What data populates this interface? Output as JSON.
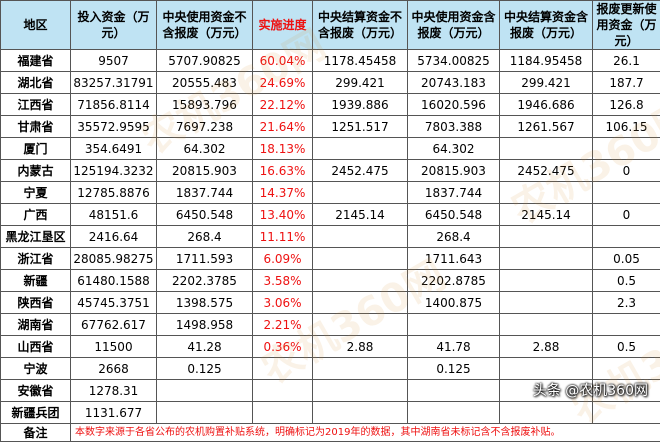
{
  "table": {
    "headers": [
      "地区",
      "投入资金（万元）",
      "中央使用资金不含报废（万元）",
      "实施进度",
      "中央结算资金不含报废（万元）",
      "中央使用资金含报废（万元）",
      "中央结算资金含报废（万元）",
      "报废更新使用资金（万元）"
    ],
    "rows": [
      [
        "福建省",
        "9507",
        "5707.90825",
        "60.04%",
        "1178.45458",
        "5734.00825",
        "1184.95458",
        "26.1"
      ],
      [
        "湖北省",
        "83257.31791",
        "20555.483",
        "24.69%",
        "299.421",
        "20743.183",
        "299.421",
        "187.7"
      ],
      [
        "江西省",
        "71856.8114",
        "15893.796",
        "22.12%",
        "1939.886",
        "16020.596",
        "1946.686",
        "126.8"
      ],
      [
        "甘肃省",
        "35572.9595",
        "7697.238",
        "21.64%",
        "1251.517",
        "7803.388",
        "1261.567",
        "106.15"
      ],
      [
        "厦门",
        "354.6491",
        "64.302",
        "18.13%",
        "",
        "64.302",
        "",
        ""
      ],
      [
        "内蒙古",
        "125194.3232",
        "20815.903",
        "16.63%",
        "2452.475",
        "20815.903",
        "2452.475",
        "0"
      ],
      [
        "宁夏",
        "12785.8876",
        "1837.744",
        "14.37%",
        "",
        "1837.744",
        "",
        ""
      ],
      [
        "广西",
        "48151.6",
        "6450.548",
        "13.40%",
        "2145.14",
        "6450.548",
        "2145.14",
        "0"
      ],
      [
        "黑龙江垦区",
        "2416.64",
        "268.4",
        "11.11%",
        "",
        "268.4",
        "",
        ""
      ],
      [
        "浙江省",
        "28085.98275",
        "1711.593",
        "6.09%",
        "",
        "1711.643",
        "",
        "0.05"
      ],
      [
        "新疆",
        "61480.1588",
        "2202.3785",
        "3.58%",
        "",
        "2202.8785",
        "",
        "0.5"
      ],
      [
        "陕西省",
        "45745.3751",
        "1398.575",
        "3.06%",
        "",
        "1400.875",
        "",
        "2.3"
      ],
      [
        "湖南省",
        "67762.617",
        "1498.958",
        "2.21%",
        "",
        "",
        "",
        ""
      ],
      [
        "山西省",
        "11500",
        "41.28",
        "0.36%",
        "2.88",
        "41.78",
        "2.88",
        "0.5"
      ],
      [
        "宁波",
        "2668",
        "0.125",
        "",
        "",
        "0.125",
        "",
        ""
      ],
      [
        "安徽省",
        "1278.31",
        "",
        "",
        "",
        "",
        "",
        ""
      ],
      [
        "新疆兵团",
        "1131.677",
        "",
        "",
        "",
        "",
        "",
        ""
      ]
    ],
    "note_label": "备注",
    "note_text": "本数字来源于各省公布的农机购置补贴系统，明确标记为2019年的数据，其中湖南省未标记含不含报废补贴。"
  },
  "watermark": "农机360网",
  "credit": "头条 @农机360网"
}
